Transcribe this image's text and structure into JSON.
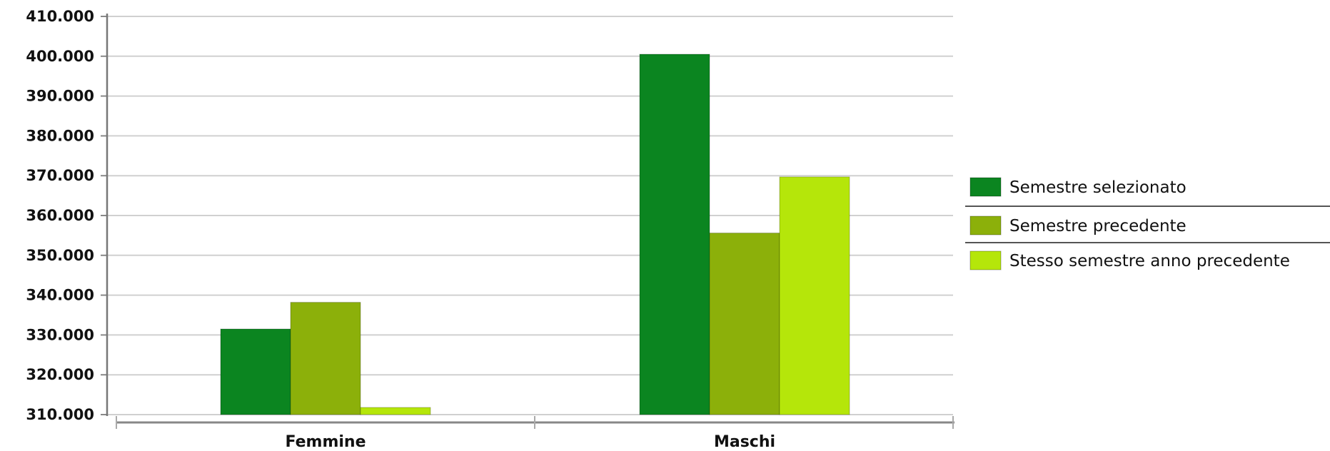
{
  "chart_data": {
    "type": "bar",
    "categories": [
      "Femmine",
      "Maschi"
    ],
    "series": [
      {
        "name": "Semestre selezionato",
        "color": "#0b8520",
        "values": [
          331500,
          400500
        ]
      },
      {
        "name": "Semestre precedente",
        "color": "#8cb00a",
        "values": [
          338200,
          355600
        ]
      },
      {
        "name": "Stesso semestre anno precedente",
        "color": "#b5e60a",
        "values": [
          311800,
          369700
        ]
      }
    ],
    "ylim": [
      310000,
      410000
    ],
    "yticks": [
      310000,
      320000,
      330000,
      340000,
      350000,
      360000,
      370000,
      380000,
      390000,
      400000,
      410000
    ],
    "ytick_labels": [
      "310.000",
      "320.000",
      "330.000",
      "340.000",
      "350.000",
      "360.000",
      "370.000",
      "380.000",
      "390.000",
      "400.000",
      "410.000"
    ],
    "title": "",
    "xlabel": "",
    "ylabel": "",
    "grid": true,
    "legend_position": "right"
  }
}
